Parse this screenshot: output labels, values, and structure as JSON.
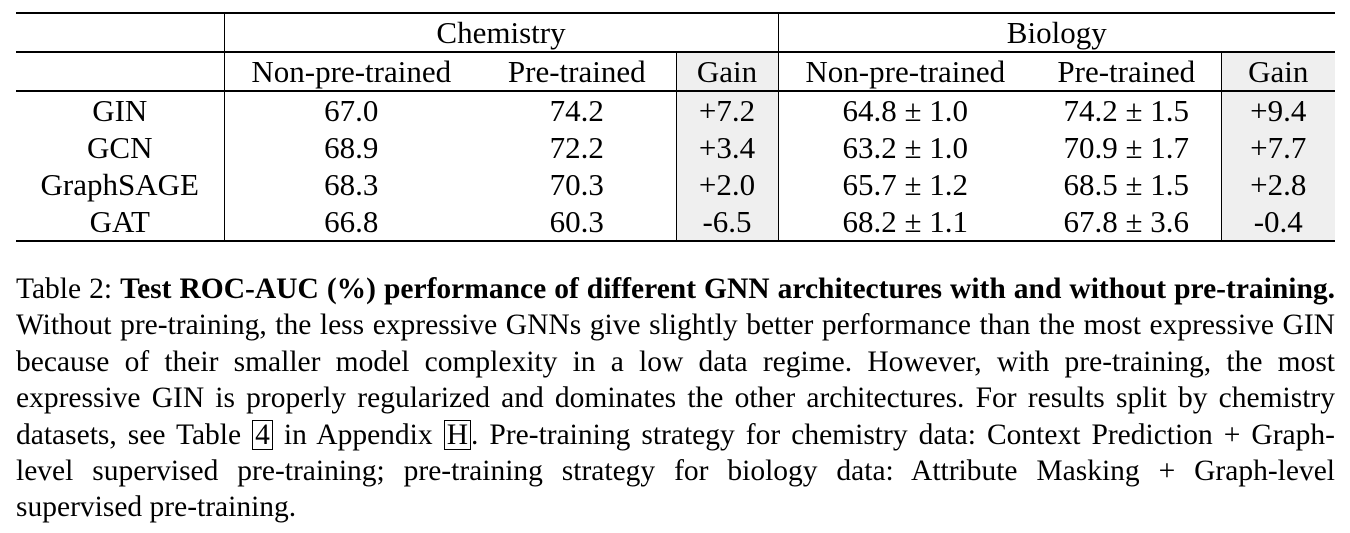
{
  "table": {
    "groups": [
      {
        "label": "Chemistry"
      },
      {
        "label": "Biology"
      }
    ],
    "subheaders": [
      "Non-pre-trained",
      "Pre-trained",
      "Gain",
      "Non-pre-trained",
      "Pre-trained",
      "Gain"
    ],
    "rows": [
      {
        "model": "GIN",
        "chem_np": "67.0",
        "chem_pt": "74.2",
        "chem_gain": "+7.2",
        "bio_np": "64.8 ± 1.0",
        "bio_pt": "74.2 ± 1.5",
        "bio_gain": "+9.4"
      },
      {
        "model": "GCN",
        "chem_np": "68.9",
        "chem_pt": "72.2",
        "chem_gain": "+3.4",
        "bio_np": "63.2 ± 1.0",
        "bio_pt": "70.9 ± 1.7",
        "bio_gain": "+7.7"
      },
      {
        "model": "GraphSAGE",
        "chem_np": "68.3",
        "chem_pt": "70.3",
        "chem_gain": "+2.0",
        "bio_np": "65.7 ± 1.2",
        "bio_pt": "68.5 ± 1.5",
        "bio_gain": "+2.8"
      },
      {
        "model": "GAT",
        "chem_np": "66.8",
        "chem_pt": "60.3",
        "chem_gain": "-6.5",
        "bio_np": "68.2 ± 1.1",
        "bio_pt": "67.8 ± 3.6",
        "bio_gain": "-0.4"
      }
    ]
  },
  "caption": {
    "label": "Table 2:",
    "lead": "Test ROC-AUC (%) performance of different GNN architectures with and without pre-training.",
    "text1": "Without pre-training, the less expressive GNNs give slightly better performance than the most expressive GIN because of their smaller model complexity in a low data regime. However, with pre-training, the most expressive GIN is properly regularized and dominates the other architectures. For results split by chemistry datasets, see Table",
    "table_ref": "4",
    "text2": "in Appendix",
    "appendix_ref": "H",
    "text3": ". Pre-training strategy for chemistry data: Context Prediction + Graph-level supervised pre-training; pre-training strategy for biology data: Attribute Masking + Graph-level supervised pre-training."
  }
}
